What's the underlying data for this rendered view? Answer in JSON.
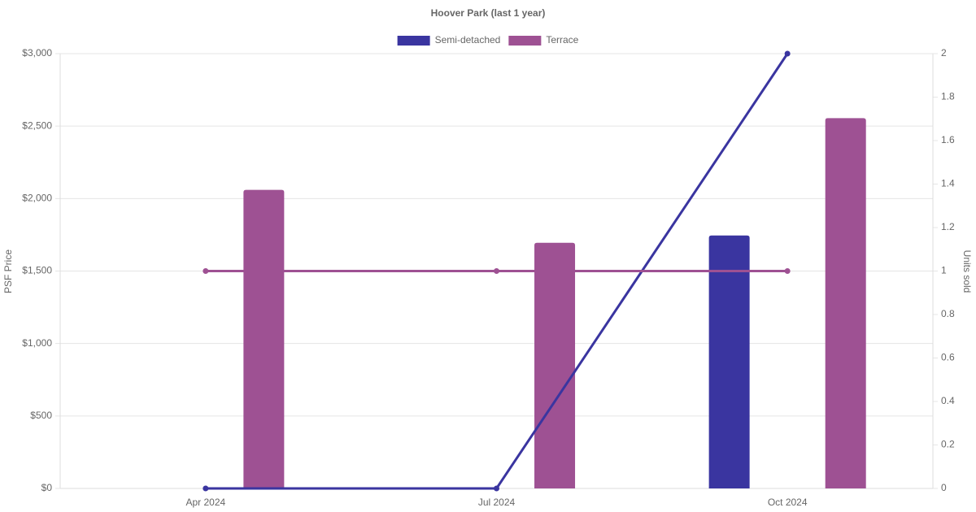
{
  "chart_data": {
    "type": "bar",
    "title": "Hoover Park (last 1 year)",
    "categories": [
      "Apr 2024",
      "Jul 2024",
      "Oct 2024"
    ],
    "series": [
      {
        "name": "Semi-detached",
        "type": "bar",
        "axis": "y",
        "color": "#3a35a0",
        "values": [
          null,
          null,
          1745
        ]
      },
      {
        "name": "Terrace",
        "type": "bar",
        "axis": "y",
        "color": "#9e5193",
        "values": [
          2060,
          1695,
          2555
        ]
      },
      {
        "type": "line",
        "axis": "y2",
        "color": "#3a35a0",
        "values": [
          0,
          0,
          2
        ]
      },
      {
        "type": "line",
        "axis": "y2",
        "color": "#9e5193",
        "values": [
          1,
          1,
          1
        ]
      }
    ],
    "ylabel": "PSF Price",
    "y2label": "Units sold",
    "ylim": [
      0,
      3000
    ],
    "yticks": [
      {
        "value": 0,
        "label": "$0"
      },
      {
        "value": 500,
        "label": "$500"
      },
      {
        "value": 1000,
        "label": "$1,000"
      },
      {
        "value": 1500,
        "label": "$1,500"
      },
      {
        "value": 2000,
        "label": "$2,000"
      },
      {
        "value": 2500,
        "label": "$2,500"
      },
      {
        "value": 3000,
        "label": "$3,000"
      }
    ],
    "y2lim": [
      0,
      2
    ],
    "y2ticks": [
      0,
      0.2,
      0.4,
      0.6,
      0.8,
      1,
      1.2,
      1.4,
      1.6,
      1.8,
      2
    ],
    "grid": true,
    "legend": "top"
  }
}
